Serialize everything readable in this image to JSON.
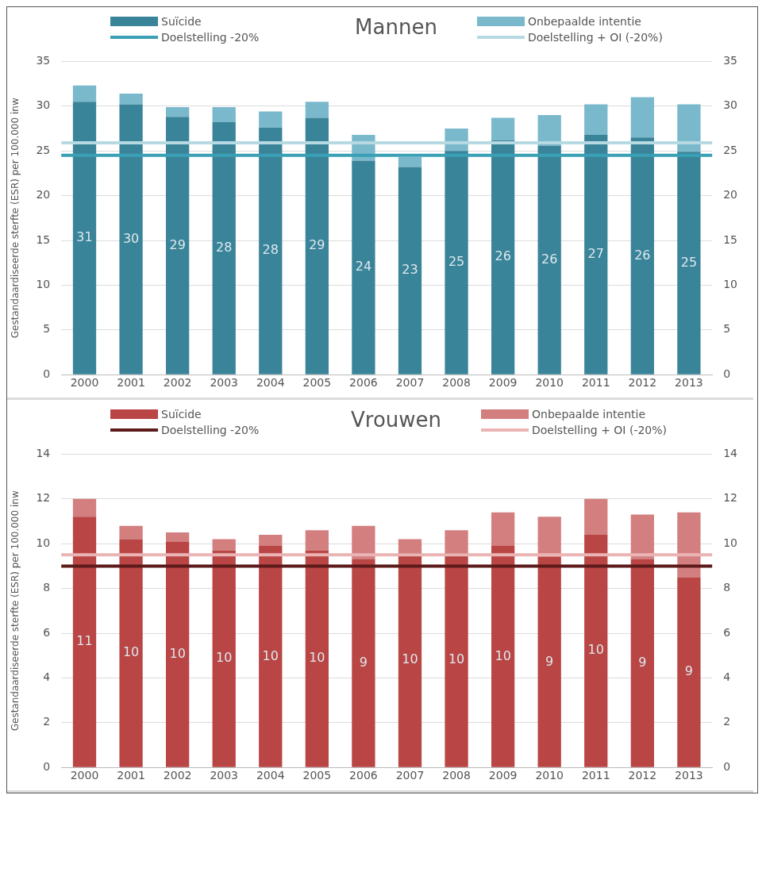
{
  "chart_data": [
    {
      "type": "bar",
      "title": "Mannen",
      "ylabel": "Gestandaardiseerde sterfte (ESR) per 100.000 inw",
      "categories": [
        "2000",
        "2001",
        "2002",
        "2003",
        "2004",
        "2005",
        "2006",
        "2007",
        "2008",
        "2009",
        "2010",
        "2011",
        "2012",
        "2013"
      ],
      "stacked": true,
      "series": [
        {
          "name": "Suïcide",
          "color": "#3a8499",
          "values": [
            30.5,
            30.2,
            28.8,
            28.2,
            27.6,
            28.7,
            23.9,
            23.2,
            25.0,
            26.2,
            25.6,
            26.8,
            26.5,
            24.9
          ],
          "value_labels": [
            "31",
            "30",
            "29",
            "28",
            "28",
            "29",
            "24",
            "23",
            "25",
            "26",
            "26",
            "27",
            "26",
            "25"
          ]
        },
        {
          "name": "Onbepaalde intentie",
          "color": "#7ab8cc",
          "values": [
            1.8,
            1.2,
            1.1,
            1.7,
            1.8,
            1.8,
            2.9,
            1.1,
            2.5,
            2.5,
            3.4,
            3.4,
            4.5,
            5.3
          ]
        }
      ],
      "ref_lines": [
        {
          "axis": "y",
          "value": 24.5,
          "label": "Doelstelling -20%",
          "color": "#3aa0b5"
        },
        {
          "axis": "y",
          "value": 25.9,
          "label": "Doelstelling + OI (-20%)",
          "color": "#b6d9e2"
        }
      ],
      "ylim": [
        0,
        35
      ],
      "yticks": [
        0,
        5,
        10,
        15,
        20,
        25,
        30,
        35
      ],
      "y2lim": [
        0,
        35
      ],
      "y2ticks": [
        0,
        5,
        10,
        15,
        20,
        25,
        30,
        35
      ],
      "grid": "y",
      "legend": "top"
    },
    {
      "type": "bar",
      "title": "Vrouwen",
      "ylabel": "Gestandaardiseerde sterfte (ESR) per 100.000 inw",
      "categories": [
        "2000",
        "2001",
        "2002",
        "2003",
        "2004",
        "2005",
        "2006",
        "2007",
        "2008",
        "2009",
        "2010",
        "2011",
        "2012",
        "2013"
      ],
      "stacked": true,
      "series": [
        {
          "name": "Suïcide",
          "color": "#b94545",
          "values": [
            11.2,
            10.2,
            10.1,
            9.7,
            9.9,
            9.7,
            9.3,
            9.6,
            9.6,
            9.9,
            9.4,
            10.4,
            9.3,
            8.5
          ],
          "value_labels": [
            "11",
            "10",
            "10",
            "10",
            "10",
            "10",
            "9",
            "10",
            "10",
            "10",
            "9",
            "10",
            "9",
            "9"
          ]
        },
        {
          "name": "Onbepaalde intentie",
          "color": "#d47f7f",
          "values": [
            0.8,
            0.6,
            0.4,
            0.5,
            0.5,
            0.9,
            1.5,
            0.6,
            1.0,
            1.5,
            1.8,
            1.6,
            2.0,
            2.9
          ]
        }
      ],
      "ref_lines": [
        {
          "axis": "y",
          "value": 9.0,
          "label": "Doelstelling -20%",
          "color": "#5c1a1a"
        },
        {
          "axis": "y",
          "value": 9.5,
          "label": "Doelstelling + OI (-20%)",
          "color": "#eab4b4"
        }
      ],
      "ylim": [
        0,
        14
      ],
      "yticks": [
        0,
        2,
        4,
        6,
        8,
        10,
        12,
        14
      ],
      "y2lim": [
        0,
        14
      ],
      "y2ticks": [
        0,
        2,
        4,
        6,
        8,
        10,
        12,
        14
      ],
      "grid": "y",
      "legend": "top"
    }
  ]
}
